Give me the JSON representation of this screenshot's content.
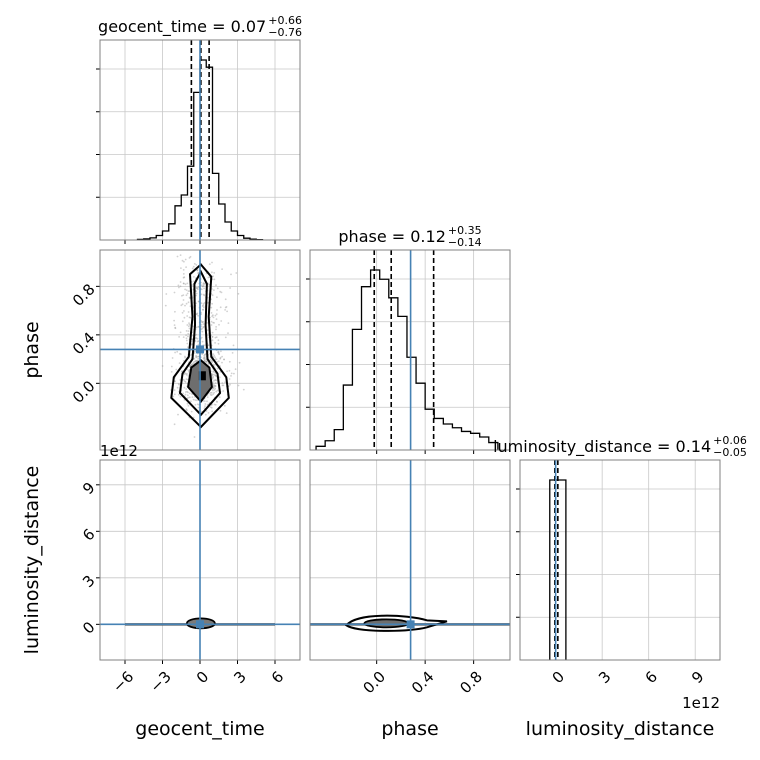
{
  "chart_data": {
    "type": "corner",
    "parameters": [
      "geocent_time",
      "phase",
      "luminosity_distance"
    ],
    "offset_label": "1e12",
    "truths": {
      "geocent_time": 0.0,
      "phase": 0.28,
      "luminosity_distance": 0.0
    },
    "colors": {
      "truth": "#4682b4",
      "hist": "#000000",
      "grid": "#c8c8c8",
      "frame": "#808080",
      "scatter": "#9a9a9a"
    },
    "grid": true,
    "titles": [
      {
        "param": "geocent_time",
        "prefix": "geocent_time = 0.07",
        "upper": "+0.66",
        "lower": "−0.76"
      },
      {
        "param": "phase",
        "prefix": "phase = 0.12",
        "upper": "+0.35",
        "lower": "−0.14"
      },
      {
        "param": "luminosity_distance",
        "prefix": "luminosity_distance = 0.14",
        "upper": "+0.06",
        "lower": "−0.05"
      }
    ],
    "axes": {
      "geocent_time": {
        "range": [
          -8,
          8
        ],
        "ticks": [
          -6,
          -3,
          0,
          3,
          6
        ],
        "tick_labels": [
          "−6",
          "−3",
          "0",
          "3",
          "6"
        ]
      },
      "phase": {
        "range": [
          -0.55,
          1.1
        ],
        "ticks": [
          0.0,
          0.4,
          0.8
        ],
        "tick_labels": [
          "0.0",
          "0.4",
          "0.8"
        ]
      },
      "luminosity_distance": {
        "range": [
          -2.3,
          10.6
        ],
        "ticks": [
          0,
          3,
          6,
          9
        ],
        "tick_labels": [
          "0",
          "3",
          "6",
          "9"
        ],
        "scale": "1e12"
      }
    },
    "histograms": {
      "geocent_time": {
        "bin_edges": [
          -5,
          -4.5,
          -4,
          -3.5,
          -3,
          -2.5,
          -2,
          -1.5,
          -1,
          -0.5,
          0,
          0.5,
          1,
          1.5,
          2,
          2.5,
          3,
          3.5,
          4,
          4.5,
          5
        ],
        "counts": [
          0.3,
          0.6,
          1.2,
          2.5,
          5,
          9,
          19,
          25,
          41,
          82,
          100,
          96,
          37,
          20,
          10,
          5,
          2.5,
          1,
          0.5,
          0.2
        ],
        "quantiles": [
          -0.69,
          0.07,
          0.73
        ]
      },
      "phase": {
        "bin_edges": [
          -0.5,
          -0.425,
          -0.35,
          -0.275,
          -0.2,
          -0.125,
          -0.05,
          0.025,
          0.1,
          0.175,
          0.25,
          0.325,
          0.4,
          0.475,
          0.55,
          0.625,
          0.7,
          0.775,
          0.85,
          0.925,
          1.0
        ],
        "counts": [
          2,
          5,
          11,
          35,
          65,
          88,
          97,
          92,
          82,
          72,
          50,
          36,
          22,
          17,
          14,
          12,
          10,
          9,
          7,
          4
        ],
        "quantiles": [
          -0.02,
          0.12,
          0.47
        ]
      },
      "luminosity_distance": {
        "bin_edges": [
          -0.38,
          0.14,
          0.66
        ],
        "counts": [
          100,
          100
        ],
        "quantiles": [
          -0.05,
          0.14
        ]
      }
    },
    "labels": {
      "x": [
        "geocent_time",
        "phase",
        "luminosity_distance"
      ],
      "y": [
        "phase",
        "luminosity_distance"
      ]
    }
  }
}
